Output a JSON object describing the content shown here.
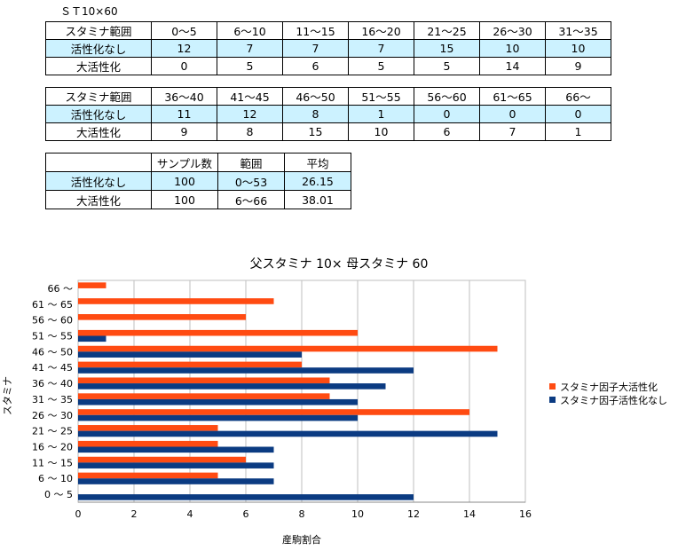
{
  "caption": "ＳＴ10×60",
  "table1": {
    "header_label": "スタミナ範囲",
    "ranges": [
      "0～5",
      "6～10",
      "11～15",
      "16～20",
      "21～25",
      "26～30",
      "31～35"
    ],
    "rows": [
      {
        "label": "活性化なし",
        "values": [
          "12",
          "7",
          "7",
          "7",
          "15",
          "10",
          "10"
        ]
      },
      {
        "label": "大活性化",
        "values": [
          "0",
          "5",
          "6",
          "5",
          "5",
          "14",
          "9"
        ]
      }
    ]
  },
  "table2": {
    "header_label": "スタミナ範囲",
    "ranges": [
      "36～40",
      "41～45",
      "46～50",
      "51～55",
      "56～60",
      "61～65",
      "66～"
    ],
    "rows": [
      {
        "label": "活性化なし",
        "values": [
          "11",
          "12",
          "8",
          "1",
          "0",
          "0",
          "0"
        ]
      },
      {
        "label": "大活性化",
        "values": [
          "9",
          "8",
          "15",
          "10",
          "6",
          "7",
          "1"
        ]
      }
    ]
  },
  "summary": {
    "headers": [
      "",
      "サンプル数",
      "範囲",
      "平均"
    ],
    "rows": [
      {
        "label": "活性化なし",
        "samples": "100",
        "range": "0～53",
        "mean": "26.15"
      },
      {
        "label": "大活性化",
        "samples": "100",
        "range": "6～66",
        "mean": "38.01"
      }
    ]
  },
  "colors": {
    "highlight_row": "#ccf2ff",
    "series_a": "#ff4b12",
    "series_b": "#0b3b82",
    "grid": "#bfbfbf"
  },
  "chart_data": {
    "type": "bar",
    "orientation": "horizontal",
    "title": "父スタミナ 10× 母スタミナ 60",
    "xlabel": "産駒割合",
    "ylabel": "スタミナ",
    "categories": [
      "0 ～ 5",
      "6 ～ 10",
      "11 ～ 15",
      "16 ～ 20",
      "21 ～ 25",
      "26 ～ 30",
      "31 ～ 35",
      "36 ～ 40",
      "41 ～ 45",
      "46 ～ 50",
      "51 ～ 55",
      "56 ～ 60",
      "61 ～ 65",
      "66 ～"
    ],
    "series": [
      {
        "name": "スタミナ因子大活性化",
        "color": "#ff4b12",
        "values": [
          0,
          5,
          6,
          5,
          5,
          14,
          9,
          9,
          8,
          15,
          10,
          6,
          7,
          1
        ]
      },
      {
        "name": "スタミナ因子活性化なし",
        "color": "#0b3b82",
        "values": [
          12,
          7,
          7,
          7,
          15,
          10,
          10,
          11,
          12,
          8,
          1,
          0,
          0,
          0
        ]
      }
    ],
    "xlim": [
      0,
      16
    ],
    "xticks": [
      "0",
      "2",
      "4",
      "6",
      "8",
      "10",
      "12",
      "14",
      "16"
    ],
    "grid": true,
    "legend_position": "right"
  }
}
